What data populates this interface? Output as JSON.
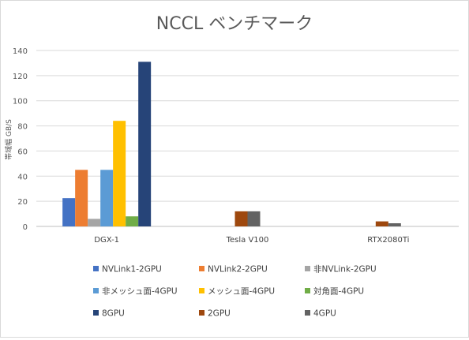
{
  "chart_data": {
    "type": "bar",
    "title": "NCCL ベンチマーク",
    "ylabel": "帯域幅 GB/S",
    "xlabel": "",
    "ylim": [
      0,
      140
    ],
    "yticks": [
      0,
      20,
      40,
      60,
      80,
      100,
      120,
      140
    ],
    "grid": true,
    "legend_position": "bottom",
    "categories": [
      "DGX-1",
      "Tesla V100",
      "RTX2080Ti"
    ],
    "series": [
      {
        "name": "NVLink1-2GPU",
        "color": "#4472C4",
        "values": [
          22.5,
          null,
          null
        ]
      },
      {
        "name": "NVLink2-2GPU",
        "color": "#ED7D31",
        "values": [
          45,
          null,
          null
        ]
      },
      {
        "name": "非NVLink-2GPU",
        "color": "#A5A5A5",
        "values": [
          6,
          null,
          null
        ]
      },
      {
        "name": "非メッシュ面-4GPU",
        "color": "#5B9BD5",
        "values": [
          45,
          null,
          null
        ]
      },
      {
        "name": "メッシュ面-4GPU",
        "color": "#FFC000",
        "values": [
          84,
          null,
          null
        ]
      },
      {
        "name": "対角面-4GPU",
        "color": "#70AD47",
        "values": [
          8,
          null,
          null
        ]
      },
      {
        "name": "8GPU",
        "color": "#264478",
        "values": [
          131,
          null,
          null
        ]
      },
      {
        "name": "2GPU",
        "color": "#9E480E",
        "values": [
          null,
          12,
          4
        ]
      },
      {
        "name": "4GPU",
        "color": "#636363",
        "values": [
          null,
          12,
          2.5
        ]
      }
    ]
  }
}
